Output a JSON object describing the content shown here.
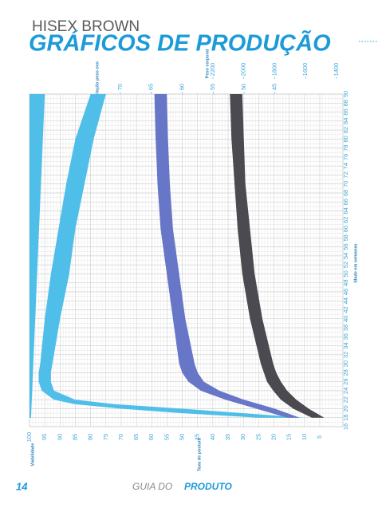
{
  "header": {
    "brand": "HISEX BROWN",
    "title": "GRÁFICOS DE PRODUÇÃO"
  },
  "chart_data": {
    "type": "band",
    "x_label": "Idade em semanas",
    "xlim": [
      16,
      90
    ],
    "xticks": [
      16,
      18,
      20,
      22,
      24,
      26,
      28,
      30,
      32,
      34,
      36,
      38,
      40,
      42,
      44,
      46,
      48,
      50,
      52,
      54,
      56,
      58,
      60,
      62,
      64,
      66,
      68,
      70,
      72,
      74,
      76,
      78,
      80,
      82,
      84,
      86,
      88,
      90
    ],
    "viability_label": "Viabilidade",
    "rate_label": "Taxa de postura",
    "rate_lim": [
      100,
      5
    ],
    "rate_ticks": [
      100,
      95,
      90,
      85,
      80,
      75,
      70,
      65,
      60,
      55,
      50,
      45,
      40,
      35,
      30,
      25,
      20,
      15,
      10,
      5
    ],
    "egg_label": "Variação peso ovo",
    "egg_lim": [
      70,
      45
    ],
    "egg_ticks": [
      70,
      65,
      60,
      55,
      50,
      45
    ],
    "body_label": "Peso corporal",
    "body_lim": [
      2200,
      1400
    ],
    "body_ticks": [
      2200,
      2000,
      1800,
      1600,
      1400
    ],
    "grid": true,
    "series": [
      {
        "axis": "rate",
        "color": "#4fbfea",
        "x": [
          18,
          90
        ],
        "lower": [
          99.5,
          95
        ],
        "upper": [
          100,
          100
        ]
      },
      {
        "axis": "rate",
        "color": "#4fbfea",
        "x": [
          18,
          19,
          20,
          21,
          22,
          24,
          26,
          28,
          30,
          40,
          50,
          60,
          70,
          80,
          90
        ],
        "lower": [
          10,
          30,
          50,
          72,
          85,
          92,
          93,
          93,
          92.5,
          90,
          87,
          85,
          82,
          79,
          75
        ],
        "upper": [
          25,
          50,
          70,
          85,
          92,
          96,
          97,
          97,
          96.5,
          95,
          93,
          90.5,
          88,
          85,
          80
        ]
      },
      {
        "axis": "egg",
        "color": "#6876c8",
        "x": [
          18,
          20,
          22,
          24,
          26,
          28,
          30,
          40,
          50,
          60,
          70,
          80,
          90
        ],
        "lower": [
          41,
          45,
          50,
          54,
          56.5,
          57.5,
          58,
          59.5,
          60.5,
          61.5,
          62,
          62.3,
          62.5
        ],
        "upper": [
          43,
          48,
          53,
          57,
          59,
          60,
          60.5,
          61.5,
          62.5,
          63.5,
          64,
          64.3,
          64.5
        ]
      },
      {
        "axis": "body",
        "color": "#4a4a50",
        "x": [
          18,
          20,
          22,
          24,
          26,
          28,
          30,
          40,
          50,
          60,
          70,
          80,
          90
        ],
        "lower": [
          1480,
          1580,
          1660,
          1720,
          1760,
          1790,
          1810,
          1880,
          1930,
          1960,
          1990,
          2000,
          2010
        ],
        "upper": [
          1560,
          1680,
          1760,
          1810,
          1850,
          1870,
          1890,
          1960,
          2010,
          2040,
          2060,
          2080,
          2090
        ]
      }
    ]
  },
  "footer": {
    "page": "14",
    "guide": "GUIA DO",
    "product": "PRODUTO"
  }
}
